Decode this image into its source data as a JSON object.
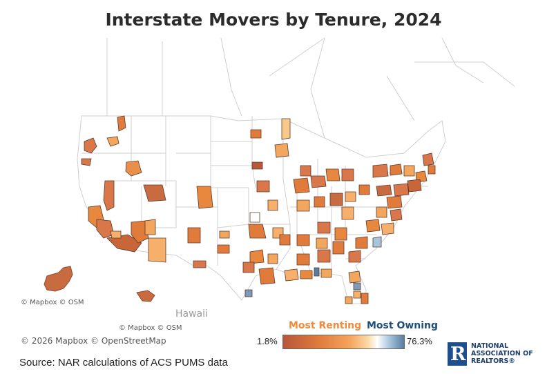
{
  "title": "Interstate Movers by Tenure, 2024",
  "map": {
    "attribution_alaska": "© Mapbox  © OSM",
    "attribution_hawaii": "© Mapbox  © OSM",
    "attribution_main": "© 2026 Mapbox  © OpenStreetMap",
    "inset_label_hawaii": "Hawaii"
  },
  "legend": {
    "left_label": "Most Renting",
    "right_label": "Most Owning",
    "min": "1.8%",
    "max": "76.3%",
    "colors": {
      "renting_dark": "#B8573A",
      "renting": "#E07B3C",
      "mid_light": "#FBD9A6",
      "neutral": "#FFFFFF",
      "owning": "#5A7E9E",
      "renting_label": "#F08A3C",
      "owning_label": "#1F4E79"
    }
  },
  "source": "Source: NAR calculations of ACS PUMS data",
  "logo": {
    "mark": "R",
    "line1": "NATIONAL",
    "line2": "ASSOCIATION OF",
    "line3": "REALTORS®"
  }
}
